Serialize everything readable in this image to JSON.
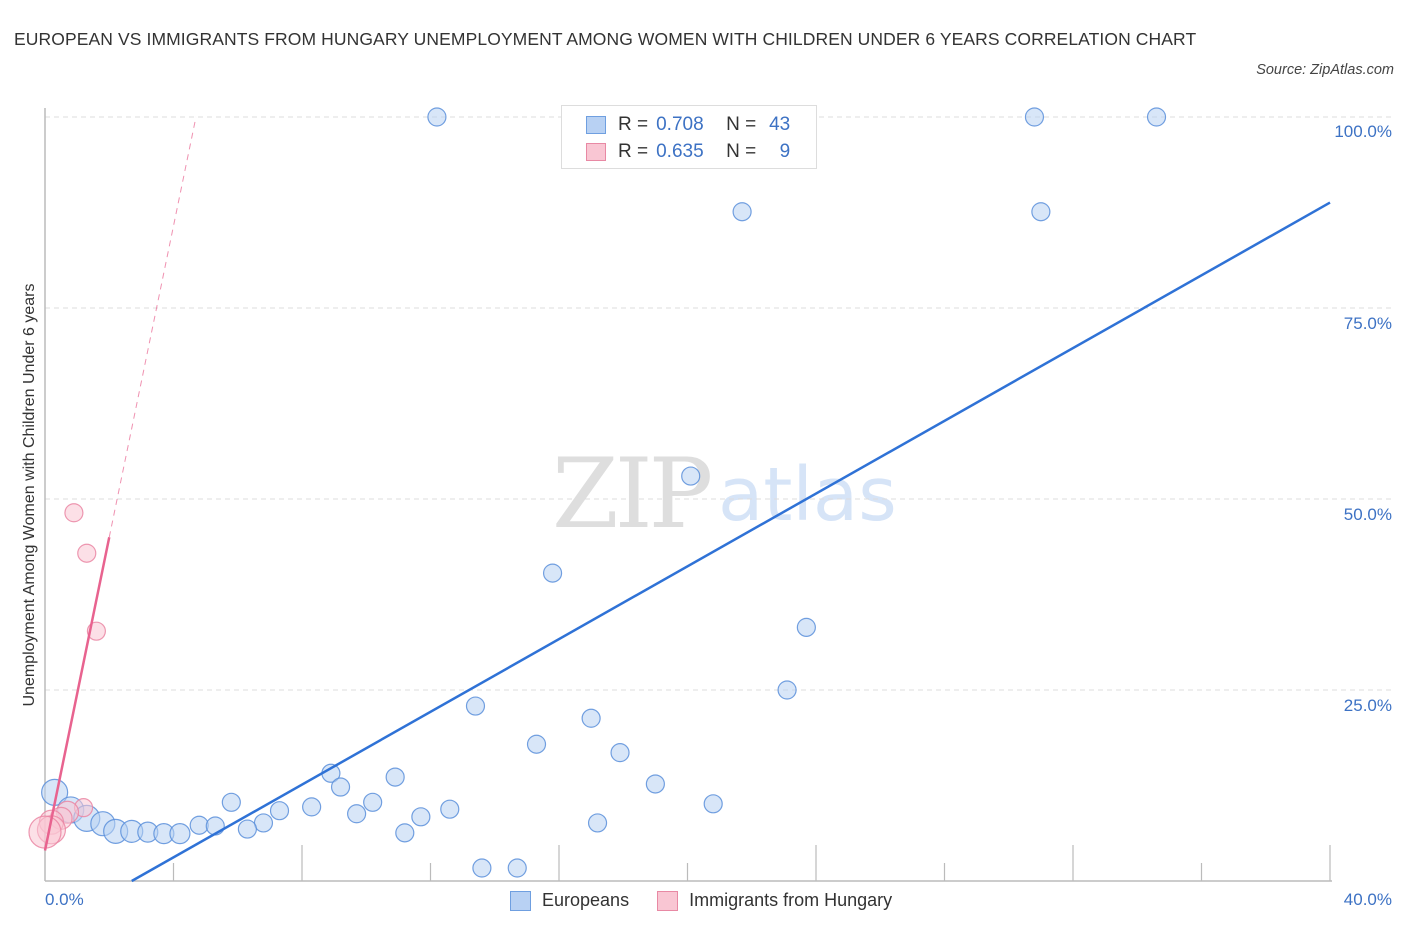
{
  "header": {
    "title": "EUROPEAN VS IMMIGRANTS FROM HUNGARY UNEMPLOYMENT AMONG WOMEN WITH CHILDREN UNDER 6 YEARS CORRELATION CHART",
    "source": "Source: ZipAtlas.com"
  },
  "watermark": {
    "zip": "ZIP",
    "atlas": "atlas"
  },
  "stats_legend": [
    {
      "series": "Europeans",
      "r_label": "R =",
      "r_value": "0.708",
      "n_label": "N =",
      "n_value": "43",
      "color": "#b8d1f3",
      "border": "#6f9fe0"
    },
    {
      "series": "Immigrants from Hungary",
      "r_label": "R =",
      "r_value": "0.635",
      "n_label": "N =",
      "n_value": "9",
      "color": "#f9c6d3",
      "border": "#e889a4"
    }
  ],
  "axes": {
    "ylabel": "Unemployment Among Women with Children Under 6 years",
    "y_ticks": [
      "100.0%",
      "75.0%",
      "50.0%",
      "25.0%"
    ],
    "x_min_label": "0.0%",
    "x_max_label": "40.0%"
  },
  "legend": {
    "items": [
      {
        "label": "Europeans",
        "color": "#b8d1f3",
        "border": "#6f9fe0"
      },
      {
        "label": "Immigrants from Hungary",
        "color": "#f9c6d3",
        "border": "#e889a4"
      }
    ]
  },
  "colors": {
    "blue_line": "#2f72d6",
    "pink_line": "#e8638f",
    "grid": "#dddddd",
    "axis": "#bbbbbb",
    "tick_text": "#3d72c4"
  },
  "chart_data": {
    "type": "scatter",
    "title": "EUROPEAN VS IMMIGRANTS FROM HUNGARY UNEMPLOYMENT AMONG WOMEN WITH CHILDREN UNDER 6 YEARS CORRELATION CHART",
    "xlabel": "",
    "ylabel": "Unemployment Among Women with Children Under 6 years",
    "xlim": [
      0,
      40
    ],
    "ylim": [
      0,
      100
    ],
    "x_tick_labels": [
      "0.0%",
      "40.0%"
    ],
    "y_tick_labels": [
      "25.0%",
      "50.0%",
      "75.0%",
      "100.0%"
    ],
    "grid": "horizontal dashed",
    "legend_position": "bottom",
    "series": [
      {
        "name": "Europeans",
        "R": 0.708,
        "N": 43,
        "color": "#b8d1f3",
        "points": [
          [
            12.2,
            100
          ],
          [
            30.8,
            100
          ],
          [
            34.6,
            100
          ],
          [
            21.7,
            87.6
          ],
          [
            31.0,
            87.6
          ],
          [
            20.1,
            53.0
          ],
          [
            15.8,
            40.3
          ],
          [
            23.7,
            33.2
          ],
          [
            23.1,
            25.0
          ],
          [
            13.4,
            22.9
          ],
          [
            17.0,
            21.3
          ],
          [
            15.3,
            17.9
          ],
          [
            17.9,
            16.8
          ],
          [
            19.0,
            12.7
          ],
          [
            8.9,
            14.1
          ],
          [
            10.9,
            13.6
          ],
          [
            9.2,
            12.3
          ],
          [
            5.8,
            10.3
          ],
          [
            10.2,
            10.3
          ],
          [
            20.8,
            10.1
          ],
          [
            12.6,
            9.4
          ],
          [
            8.3,
            9.7
          ],
          [
            7.3,
            9.2
          ],
          [
            9.7,
            8.8
          ],
          [
            11.7,
            8.4
          ],
          [
            4.8,
            7.3
          ],
          [
            5.3,
            7.2
          ],
          [
            6.8,
            7.6
          ],
          [
            6.3,
            6.8
          ],
          [
            17.2,
            7.6
          ],
          [
            11.2,
            6.3
          ],
          [
            13.6,
            1.7
          ],
          [
            14.7,
            1.7
          ],
          [
            0.3,
            11.6
          ],
          [
            0.8,
            9.3
          ],
          [
            1.3,
            8.2
          ],
          [
            1.8,
            7.5
          ],
          [
            2.2,
            6.5
          ],
          [
            2.7,
            6.5
          ],
          [
            3.2,
            6.4
          ],
          [
            3.7,
            6.2
          ],
          [
            4.2,
            6.2
          ]
        ],
        "point_sizes": [
          9,
          9,
          9,
          9,
          9,
          9,
          9,
          9,
          9,
          9,
          9,
          9,
          9,
          9,
          9,
          9,
          9,
          9,
          9,
          9,
          9,
          9,
          9,
          9,
          9,
          9,
          9,
          9,
          9,
          9,
          9,
          9,
          9,
          13,
          13,
          13,
          12,
          12,
          11,
          10,
          10,
          10
        ],
        "trendline": {
          "x": [
            2.7,
            40.0
          ],
          "y": [
            0.0,
            88.8
          ]
        }
      },
      {
        "name": "Immigrants from Hungary",
        "R": 0.635,
        "N": 9,
        "color": "#f9c6d3",
        "points": [
          [
            0.9,
            48.2
          ],
          [
            1.3,
            42.9
          ],
          [
            1.6,
            32.7
          ],
          [
            1.2,
            9.6
          ],
          [
            0.7,
            9.0
          ],
          [
            0.5,
            8.2
          ],
          [
            0.2,
            7.7
          ],
          [
            0.2,
            6.7
          ],
          [
            0.0,
            6.4
          ]
        ],
        "point_sizes": [
          9,
          9,
          9,
          9,
          11,
          11,
          12,
          14,
          16
        ],
        "trendline": {
          "x": [
            0.0,
            2.0
          ],
          "y": [
            4.0,
            45.0
          ]
        },
        "trendline_extension": {
          "x": [
            2.0,
            4.7
          ],
          "y": [
            45.0,
            100.0
          ],
          "style": "dashed"
        }
      }
    ]
  }
}
